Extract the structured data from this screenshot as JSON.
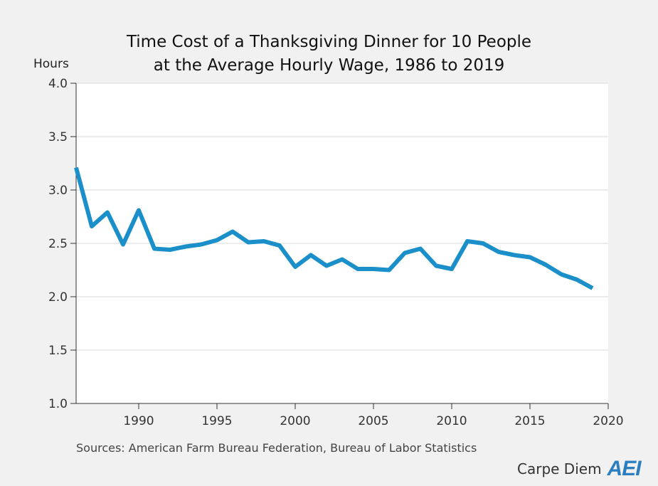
{
  "chart_data": {
    "type": "line",
    "title_lines": [
      "Time Cost of a Thanksgiving Dinner for 10 People",
      "at the Average Hourly Wage, 1986 to 2019"
    ],
    "ylabel": "Hours",
    "xlim": [
      1986,
      2020
    ],
    "ylim": [
      1.0,
      4.0
    ],
    "x_ticks": [
      1990,
      1995,
      2000,
      2005,
      2010,
      2015,
      2020
    ],
    "y_ticks": [
      "1.0",
      "1.5",
      "2.0",
      "2.5",
      "3.0",
      "3.5",
      "4.0"
    ],
    "grid": true,
    "line_color": "#1a8fc9",
    "series": [
      {
        "x": [
          1986,
          1987,
          1988,
          1989,
          1990,
          1991,
          1992,
          1993,
          1994,
          1995,
          1996,
          1997,
          1998,
          1999,
          2000,
          2001,
          2002,
          2003,
          2004,
          2005,
          2006,
          2007,
          2008,
          2009,
          2010,
          2011,
          2012,
          2013,
          2014,
          2015,
          2016,
          2017,
          2018,
          2019
        ],
        "values": [
          3.21,
          2.66,
          2.79,
          2.49,
          2.81,
          2.45,
          2.44,
          2.47,
          2.49,
          2.53,
          2.61,
          2.51,
          2.52,
          2.48,
          2.28,
          2.39,
          2.29,
          2.35,
          2.26,
          2.26,
          2.25,
          2.41,
          2.45,
          2.29,
          2.26,
          2.52,
          2.5,
          2.42,
          2.39,
          2.37,
          2.3,
          2.21,
          2.16,
          2.08
        ]
      }
    ]
  },
  "footer": {
    "source": "Sources: American Farm Bureau Federation, Bureau of Labor Statistics",
    "brand": "Carpe Diem",
    "logo_text": "AEI"
  }
}
